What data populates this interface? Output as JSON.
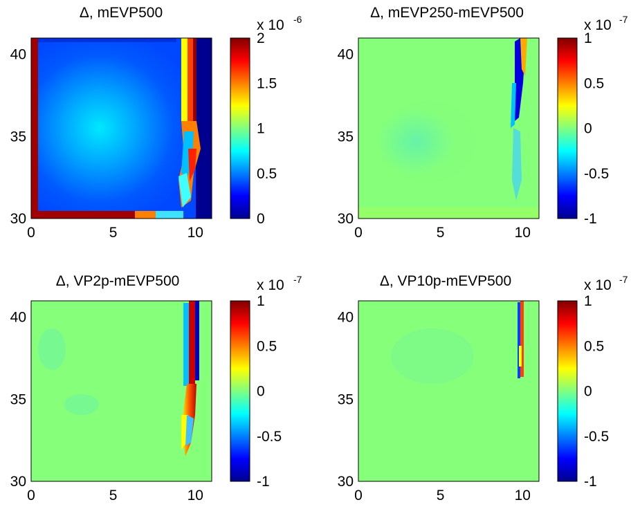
{
  "chart_data": [
    {
      "type": "heatmap",
      "title": "Δ, mEVP500",
      "xlim": [
        0,
        11
      ],
      "ylim": [
        30,
        41
      ],
      "xticks": [
        "0",
        "5",
        "10"
      ],
      "yticks": [
        "30",
        "35",
        "40"
      ],
      "colorbar": {
        "ticks": [
          "0",
          "0.5",
          "1",
          "1.5",
          "2"
        ],
        "range": [
          0,
          2
        ],
        "exponent_label": "x 10",
        "exponent": "-6"
      }
    },
    {
      "type": "heatmap",
      "title": "Δ, mEVP250-mEVP500",
      "xlim": [
        0,
        11
      ],
      "ylim": [
        30,
        41
      ],
      "xticks": [
        "0",
        "5",
        "10"
      ],
      "yticks": [
        "30",
        "35",
        "40"
      ],
      "colorbar": {
        "ticks": [
          "-1",
          "-0.5",
          "0",
          "0.5",
          "1"
        ],
        "range": [
          -1,
          1
        ],
        "exponent_label": "x 10",
        "exponent": "-7"
      }
    },
    {
      "type": "heatmap",
      "title": "Δ, VP2p-mEVP500",
      "xlim": [
        0,
        11
      ],
      "ylim": [
        30,
        41
      ],
      "xticks": [
        "0",
        "5",
        "10"
      ],
      "yticks": [
        "30",
        "35",
        "40"
      ],
      "colorbar": {
        "ticks": [
          "-1",
          "-0.5",
          "0",
          "0.5",
          "1"
        ],
        "range": [
          -1,
          1
        ],
        "exponent_label": "x 10",
        "exponent": "-7"
      }
    },
    {
      "type": "heatmap",
      "title": "Δ, VP10p-mEVP500",
      "xlim": [
        0,
        11
      ],
      "ylim": [
        30,
        41
      ],
      "xticks": [
        "0",
        "5",
        "10"
      ],
      "yticks": [
        "30",
        "35",
        "40"
      ],
      "colorbar": {
        "ticks": [
          "-1",
          "-0.5",
          "0",
          "0.5",
          "1"
        ],
        "range": [
          -1,
          1
        ],
        "exponent_label": "x 10",
        "exponent": "-7"
      }
    }
  ]
}
